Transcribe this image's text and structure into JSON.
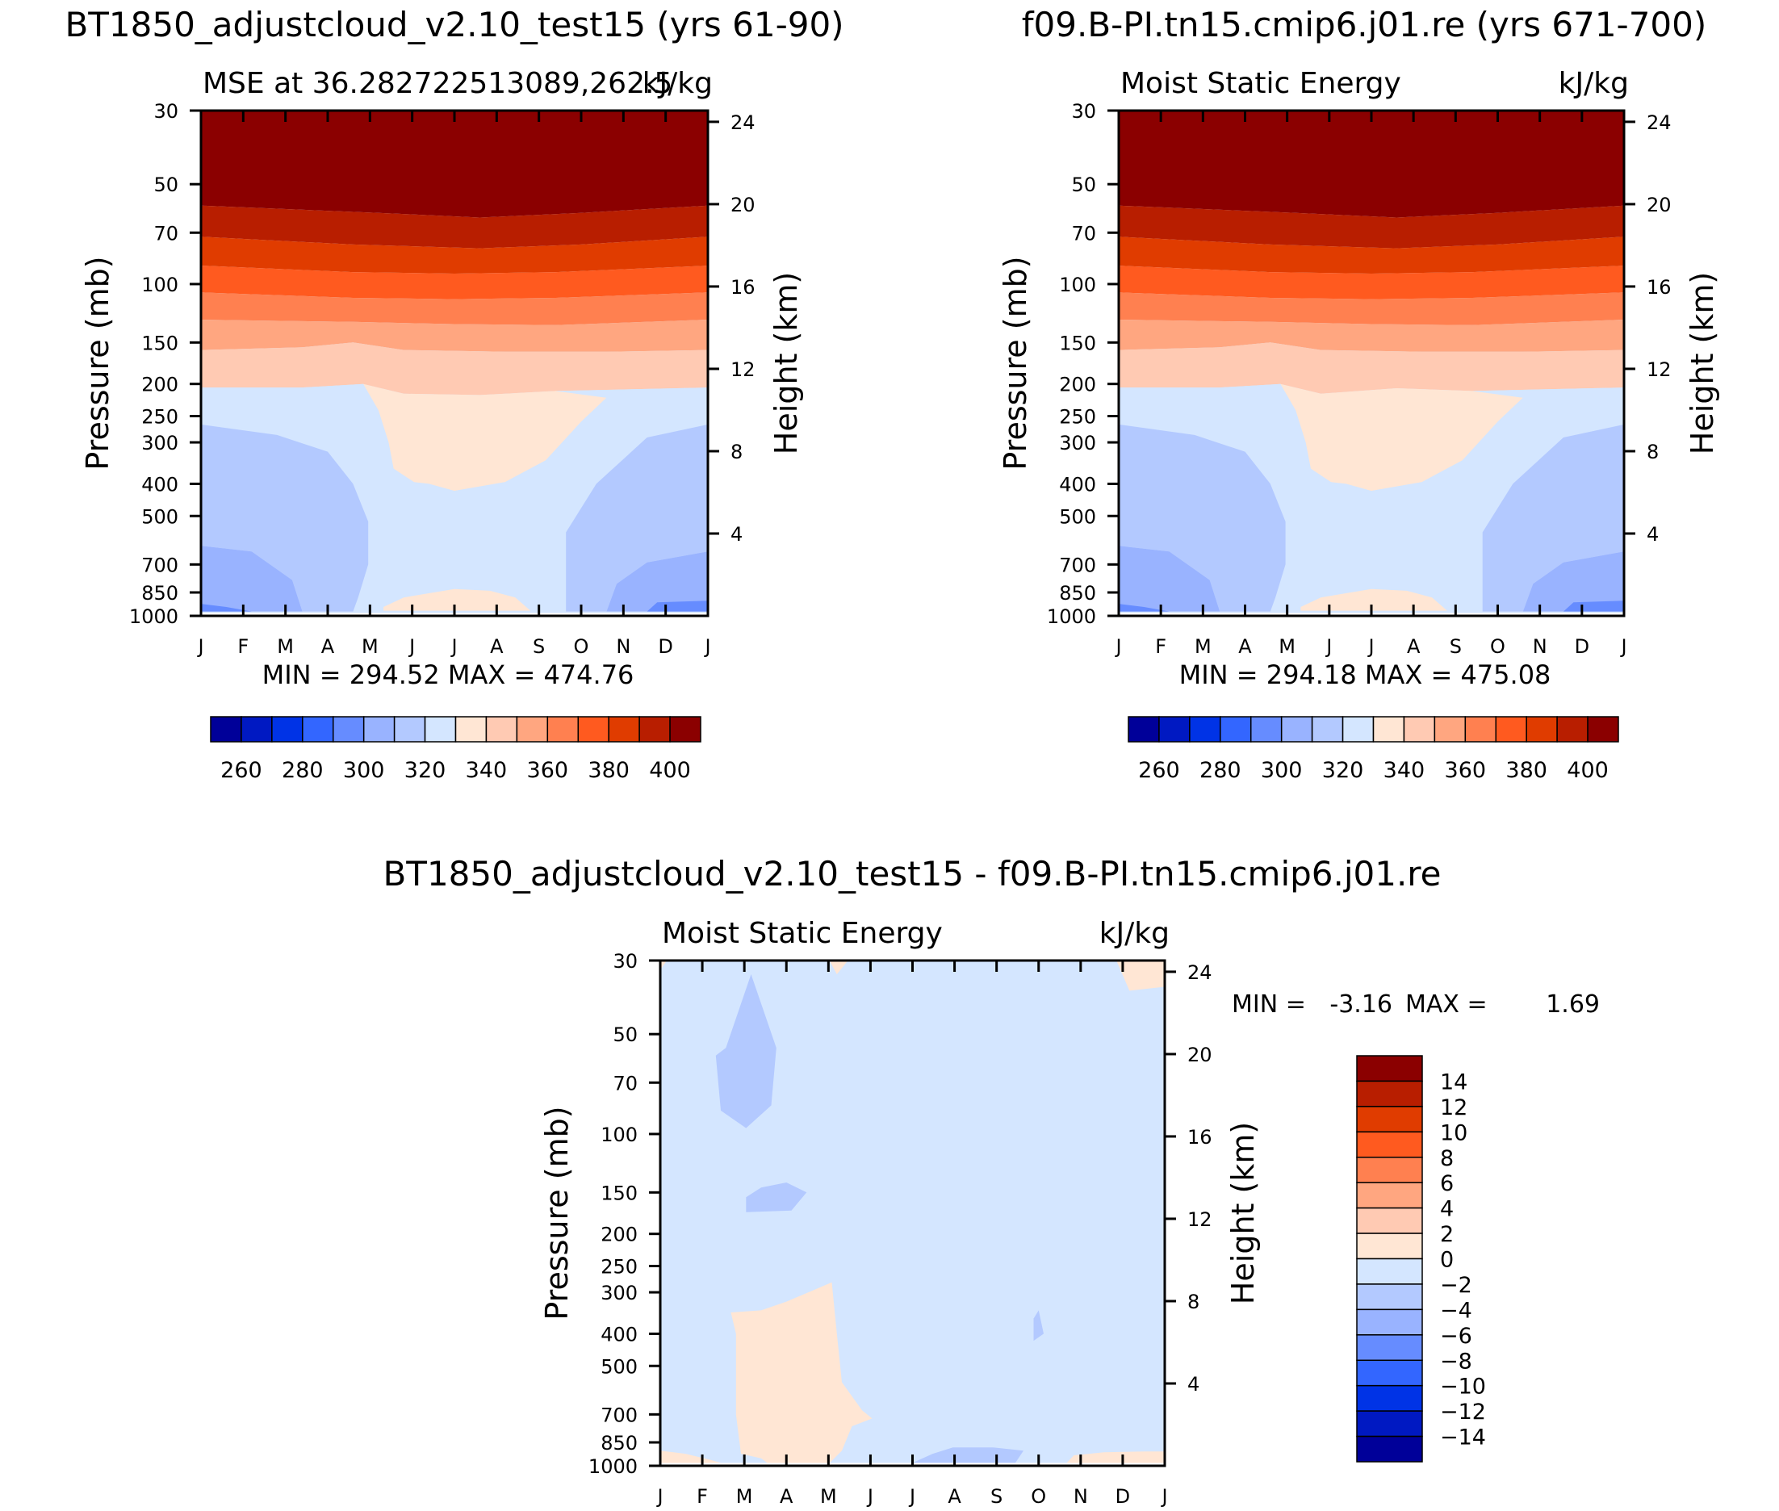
{
  "months": [
    "J",
    "F",
    "M",
    "A",
    "M",
    "J",
    "J",
    "A",
    "S",
    "O",
    "N",
    "D",
    "J"
  ],
  "pressure_ticks": [
    "30",
    "50",
    "70",
    "100",
    "150",
    "200",
    "250",
    "300",
    "400",
    "500",
    "700",
    "850",
    "1000"
  ],
  "pressure_values": [
    30,
    50,
    70,
    100,
    150,
    200,
    250,
    300,
    400,
    500,
    700,
    850,
    1000
  ],
  "height_ticks": [
    "24",
    "20",
    "16",
    "12",
    "8",
    "4"
  ],
  "height_values_km": [
    24,
    20,
    16,
    12,
    8,
    4
  ],
  "left_axis_label": "Pressure (mb)",
  "right_axis_label": "Height (km)",
  "colors_abs": [
    "#000099",
    "#0019c2",
    "#0033e6",
    "#3366ff",
    "#668cff",
    "#99b3ff",
    "#b3c9ff",
    "#d4e6ff",
    "#ffe6d4",
    "#ffcab3",
    "#ffa680",
    "#ff8050",
    "#ff5a1f",
    "#e03c00",
    "#b81e00",
    "#8b0000"
  ],
  "colors_diff": [
    "#000099",
    "#0019c2",
    "#0033e6",
    "#3366ff",
    "#668cff",
    "#99b3ff",
    "#b3c9ff",
    "#d4e6ff",
    "#ffe6d4",
    "#ffcab3",
    "#ffa680",
    "#ff8050",
    "#ff5a1f",
    "#e03c00",
    "#b81e00",
    "#8b0000"
  ],
  "chart_data": [
    {
      "type": "heatmap",
      "title": "BT1850_adjustcloud_v2.10_test15 (yrs 61-90)",
      "subtitle_left": "MSE at 36.282722513089,262.5",
      "subtitle_right": "kJ/kg",
      "xlabel": "",
      "ylabel": "Pressure (mb)",
      "ylabel_right": "Height (km)",
      "x": [
        "J",
        "F",
        "M",
        "A",
        "M",
        "J",
        "J",
        "A",
        "S",
        "O",
        "N",
        "D",
        "J"
      ],
      "ylim": [
        1000,
        30
      ],
      "min_max_text": "MIN = 294.52 MAX = 474.76",
      "colorbar_levels": [
        260,
        270,
        280,
        290,
        300,
        310,
        320,
        330,
        340,
        350,
        360,
        370,
        380,
        390,
        400
      ],
      "colorbar_labels": [
        "260",
        "280",
        "300",
        "320",
        "340",
        "360",
        "380",
        "400"
      ]
    },
    {
      "type": "heatmap",
      "title": "f09.B-PI.tn15.cmip6.j01.re (yrs 671-700)",
      "subtitle_left": "Moist Static Energy",
      "subtitle_right": "kJ/kg",
      "xlabel": "",
      "ylabel": "Pressure (mb)",
      "ylabel_right": "Height (km)",
      "x": [
        "J",
        "F",
        "M",
        "A",
        "M",
        "J",
        "J",
        "A",
        "S",
        "O",
        "N",
        "D",
        "J"
      ],
      "ylim": [
        1000,
        30
      ],
      "min_max_text": "MIN = 294.18 MAX = 475.08",
      "colorbar_levels": [
        260,
        270,
        280,
        290,
        300,
        310,
        320,
        330,
        340,
        350,
        360,
        370,
        380,
        390,
        400
      ],
      "colorbar_labels": [
        "260",
        "280",
        "300",
        "320",
        "340",
        "360",
        "380",
        "400"
      ]
    },
    {
      "type": "heatmap",
      "title": "BT1850_adjustcloud_v2.10_test15 - f09.B-PI.tn15.cmip6.j01.re",
      "subtitle_left": "Moist Static Energy",
      "subtitle_right": "kJ/kg",
      "xlabel": "",
      "ylabel": "Pressure (mb)",
      "ylabel_right": "Height (km)",
      "x": [
        "J",
        "F",
        "M",
        "A",
        "M",
        "J",
        "J",
        "A",
        "S",
        "O",
        "N",
        "D",
        "J"
      ],
      "ylim": [
        1000,
        30
      ],
      "min_label": "MIN =",
      "min_value": "-3.16",
      "max_label": "MAX =",
      "max_value": "1.69",
      "colorbar_levels": [
        -14,
        -12,
        -10,
        -8,
        -6,
        -4,
        -2,
        0,
        2,
        4,
        6,
        8,
        10,
        12,
        14
      ],
      "colorbar_labels": [
        "14",
        "12",
        "10",
        "8",
        "6",
        "4",
        "2",
        "0",
        "−2",
        "−4",
        "−6",
        "−8",
        "−10",
        "−12",
        "−14"
      ]
    }
  ]
}
